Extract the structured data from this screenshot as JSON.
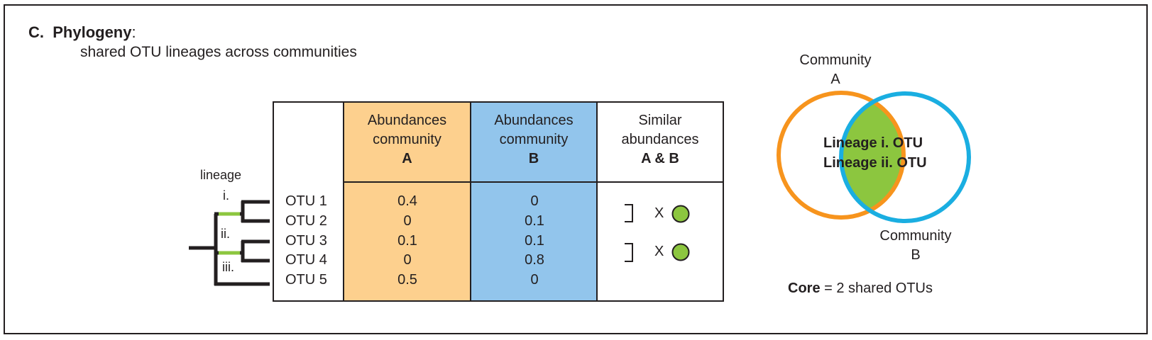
{
  "panel": {
    "letter": "C.",
    "title": "Phylogeny",
    "title_suffix": ":",
    "subtitle": "shared OTU lineages across communities"
  },
  "tree": {
    "label": "lineage",
    "node_labels": [
      "i.",
      "ii.",
      "iii."
    ],
    "branch_color": "#231f20",
    "highlight_color": "#8cc63f"
  },
  "table": {
    "otus": [
      "OTU 1",
      "OTU 2",
      "OTU 3",
      "OTU 4",
      "OTU 5"
    ],
    "col_a": {
      "line1": "Abundances",
      "line2": "community",
      "line3": "A",
      "values": [
        "0.4",
        "0",
        "0.1",
        "0",
        "0.5"
      ],
      "color": "#fdd08e"
    },
    "col_b": {
      "line1": "Abundances",
      "line2": "community",
      "line3": "B",
      "values": [
        "0",
        "0.1",
        "0.1",
        "0.8",
        "0"
      ],
      "color": "#92c5ec"
    },
    "col_sim": {
      "line1": "Similar",
      "line2": "abundances",
      "line3": "A & B",
      "marker": "X"
    }
  },
  "venn": {
    "community_a": {
      "line1": "Community",
      "line2": "A",
      "color": "#f7941d"
    },
    "community_b": {
      "line1": "Community",
      "line2": "B",
      "color": "#1aaee1"
    },
    "overlap_color": "#8cc63f",
    "overlap_lines": [
      "Lineage i. OTU",
      "Lineage ii. OTU"
    ]
  },
  "core": {
    "bold": "Core",
    "rest": "=  2 shared OTUs"
  }
}
